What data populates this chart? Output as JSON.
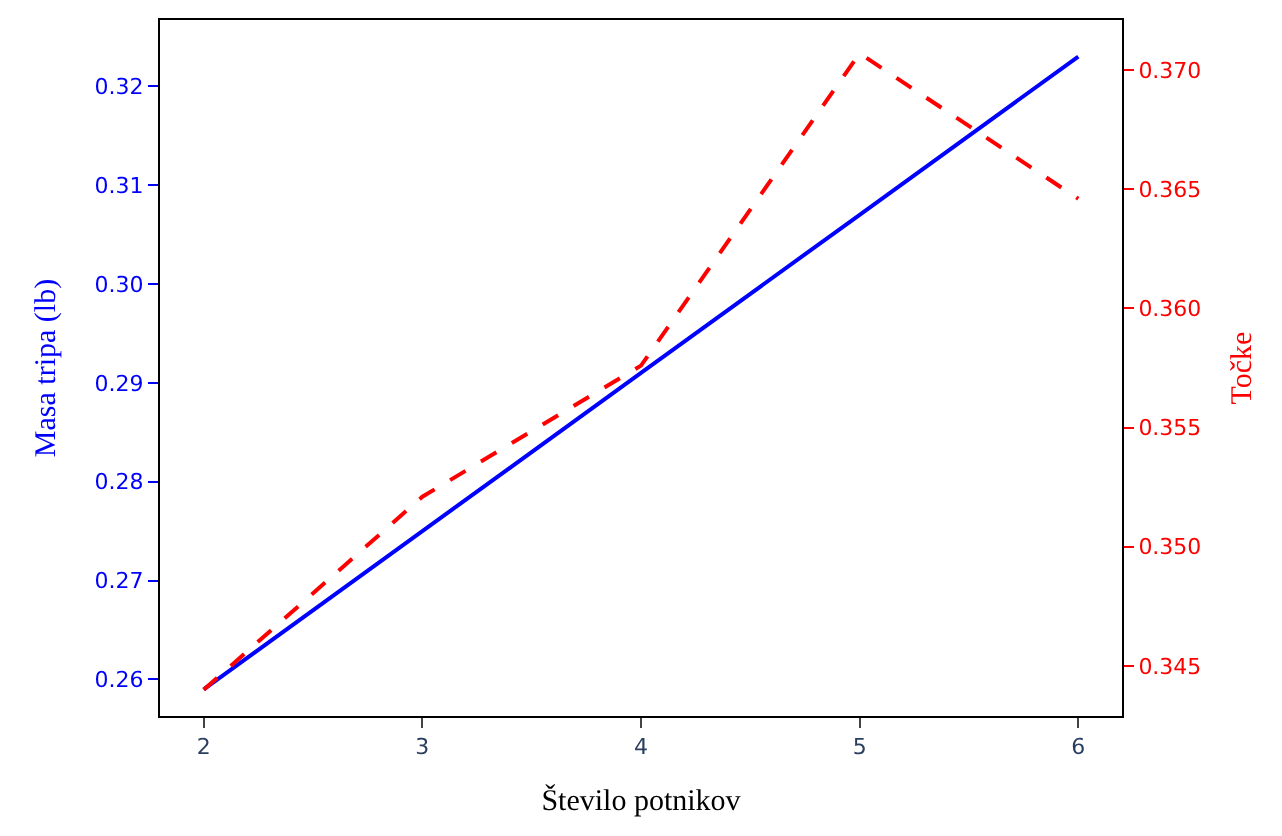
{
  "chart_data": {
    "type": "line",
    "xlabel": "Število potnikov",
    "ylabel": "Masa tripa (lb)",
    "y2label": "Točke",
    "x": [
      2,
      3,
      4,
      5,
      6
    ],
    "xlim": [
      1.8,
      6.2
    ],
    "xticks": [
      2,
      3,
      4,
      5,
      6
    ],
    "ylim": [
      0.2563,
      0.3267
    ],
    "yticks": [
      0.26,
      0.27,
      0.28,
      0.29,
      {
        "value": 0.3,
        "label": "0.30"
      },
      0.31,
      0.32
    ],
    "y2lim": [
      0.3429,
      0.3721
    ],
    "y2ticks": [
      0.345,
      {
        "value": 0.35,
        "label": "0.350"
      },
      0.355,
      {
        "value": 0.36,
        "label": "0.360"
      },
      0.365,
      {
        "value": 0.37,
        "label": "0.370"
      }
    ],
    "series": [
      {
        "color": "#0000ff",
        "line_style": "solid",
        "values": [
          0.259,
          0.275,
          0.291,
          0.307,
          0.323
        ]
      },
      {
        "color": "#ff0000",
        "line_style": "dashed",
        "axis": "y2",
        "values": [
          0.344,
          0.3521,
          0.3576,
          0.3707,
          0.3646
        ]
      }
    ]
  }
}
